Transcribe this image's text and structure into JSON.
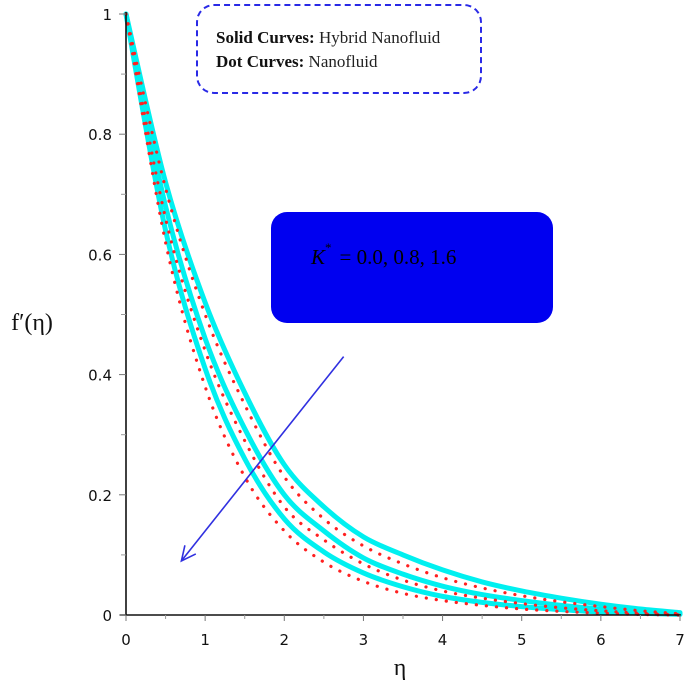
{
  "chart_data": {
    "type": "line",
    "title": "",
    "xlabel": "η",
    "ylabel": "f′(η)",
    "xlim": [
      0,
      7
    ],
    "ylim": [
      0,
      1
    ],
    "xticks": [
      0,
      1,
      2,
      3,
      4,
      5,
      6,
      7
    ],
    "yticks": [
      0,
      0.2,
      0.4,
      0.6,
      0.8,
      1
    ],
    "ytick_labels": [
      "0",
      "0.2",
      "0.4",
      "0.6",
      "0.8",
      "1"
    ],
    "xtick_labels": [
      "0",
      "1",
      "2",
      "3",
      "4",
      "5",
      "6",
      "7"
    ],
    "grid": false,
    "x": [
      0,
      0.5,
      1,
      1.5,
      2,
      2.5,
      3,
      3.5,
      4,
      4.5,
      5,
      5.5,
      6,
      6.5,
      7
    ],
    "series": [
      {
        "name": "Hybrid Nanofluid, K*=0.0",
        "style": "solid",
        "color": "#00f0f0",
        "values": [
          1.0,
          0.72,
          0.52,
          0.37,
          0.25,
          0.18,
          0.13,
          0.1,
          0.075,
          0.055,
          0.04,
          0.028,
          0.018,
          0.01,
          0.004
        ]
      },
      {
        "name": "Hybrid Nanofluid, K*=0.8",
        "style": "solid",
        "color": "#00f0f0",
        "values": [
          1.0,
          0.68,
          0.46,
          0.31,
          0.2,
          0.14,
          0.095,
          0.068,
          0.048,
          0.034,
          0.024,
          0.016,
          0.01,
          0.005,
          0.002
        ]
      },
      {
        "name": "Hybrid Nanofluid, K*=1.6",
        "style": "solid",
        "color": "#00f0f0",
        "values": [
          1.0,
          0.64,
          0.41,
          0.26,
          0.16,
          0.105,
          0.07,
          0.047,
          0.031,
          0.021,
          0.014,
          0.009,
          0.005,
          0.003,
          0.001
        ]
      },
      {
        "name": "Nanofluid, K*=0.0",
        "style": "dotted",
        "color": "#ff2020",
        "values": [
          1.0,
          0.71,
          0.5,
          0.35,
          0.23,
          0.16,
          0.115,
          0.085,
          0.062,
          0.045,
          0.032,
          0.022,
          0.014,
          0.007,
          0.002
        ]
      },
      {
        "name": "Nanofluid, K*=0.8",
        "style": "dotted",
        "color": "#ff2020",
        "values": [
          1.0,
          0.66,
          0.44,
          0.29,
          0.18,
          0.125,
          0.085,
          0.058,
          0.04,
          0.028,
          0.019,
          0.012,
          0.007,
          0.003,
          0.001
        ]
      },
      {
        "name": "Nanofluid, K*=1.6",
        "style": "dotted",
        "color": "#ff2020",
        "values": [
          1.0,
          0.62,
          0.38,
          0.23,
          0.14,
          0.088,
          0.056,
          0.036,
          0.024,
          0.016,
          0.01,
          0.006,
          0.003,
          0.001,
          0.0
        ]
      }
    ],
    "annotations": [
      {
        "type": "legend_box",
        "lines": [
          {
            "bold": "Solid Curves:",
            "text": " Hybrid Nanofluid"
          },
          {
            "bold": "Dot Curves:",
            "text": " Nanofluid"
          }
        ]
      },
      {
        "type": "param_box",
        "symbol": "K",
        "superscript": "*",
        "text": "= 0.0, 0.8, 1.6"
      },
      {
        "type": "arrow",
        "from": [
          2.75,
          0.43
        ],
        "to": [
          0.7,
          0.09
        ],
        "meaning": "increasing K*"
      }
    ]
  },
  "legend": {
    "line1_bold": "Solid Curves:",
    "line1_text": " Hybrid Nanofluid",
    "line2_bold": "Dot Curves:",
    "line2_text": " Nanofluid"
  },
  "param_box": {
    "symbol": "K",
    "superscript": "*",
    "text": "= 0.0, 0.8, 1.6"
  },
  "colors": {
    "solid": "#00f0f0",
    "dotted": "#ff2020",
    "arrow": "#3030e0",
    "param_box_bg": "#0000f0",
    "legend_border": "#2a2ae6"
  }
}
